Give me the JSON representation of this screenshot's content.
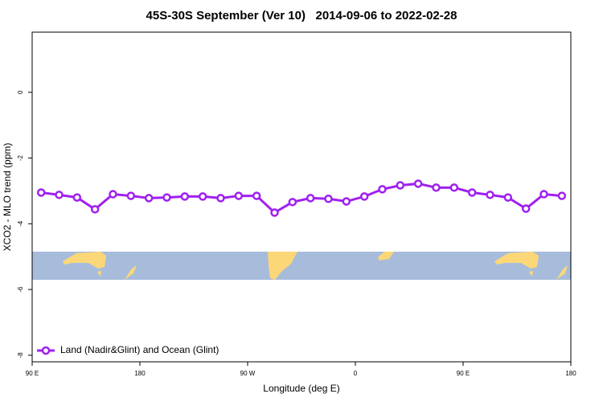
{
  "chart_data": {
    "type": "line",
    "title": "45S-30S September (Ver 10)   2014-09-06 to 2022-02-28",
    "xlabel": "Longitude (deg E)",
    "ylabel": "XCO2 - MLO trend (ppm)",
    "x": [
      97.5,
      112.5,
      127.5,
      142.5,
      157.5,
      172.5,
      187.5,
      202.5,
      217.5,
      232.5,
      247.5,
      262.5,
      277.5,
      292.5,
      307.5,
      322.5,
      337.5,
      352.5,
      367.5,
      382.5,
      397.5,
      412.5,
      427.5,
      442.5,
      457.5,
      472.5,
      487.5,
      502.5,
      517.5,
      532.5
    ],
    "series": [
      {
        "name": "Land (Nadir&Glint) and Ocean (Glint)",
        "color": "#a020f0",
        "values": [
          -3.05,
          -3.12,
          -3.2,
          -3.56,
          -3.1,
          -3.15,
          -3.22,
          -3.2,
          -3.17,
          -3.17,
          -3.22,
          -3.15,
          -3.15,
          -3.66,
          -3.34,
          -3.22,
          -3.24,
          -3.32,
          -3.17,
          -2.95,
          -2.83,
          -2.78,
          -2.9,
          -2.9,
          -3.05,
          -3.12,
          -3.2,
          -3.54,
          -3.1,
          -3.15
        ]
      }
    ],
    "xlim": [
      90,
      540
    ],
    "xticks": [
      {
        "value": 90,
        "label": "90 E"
      },
      180,
      {
        "value": 270,
        "label": "90 W"
      },
      {
        "value": 360,
        "label": "0"
      },
      {
        "value": 450,
        "label": "90 E"
      },
      {
        "value": 540,
        "label": "180"
      }
    ],
    "ylim": [
      -8.2,
      1.83
    ],
    "yticks": [
      0,
      -2,
      -4,
      -6,
      -8
    ],
    "legend": "bottom-left"
  }
}
